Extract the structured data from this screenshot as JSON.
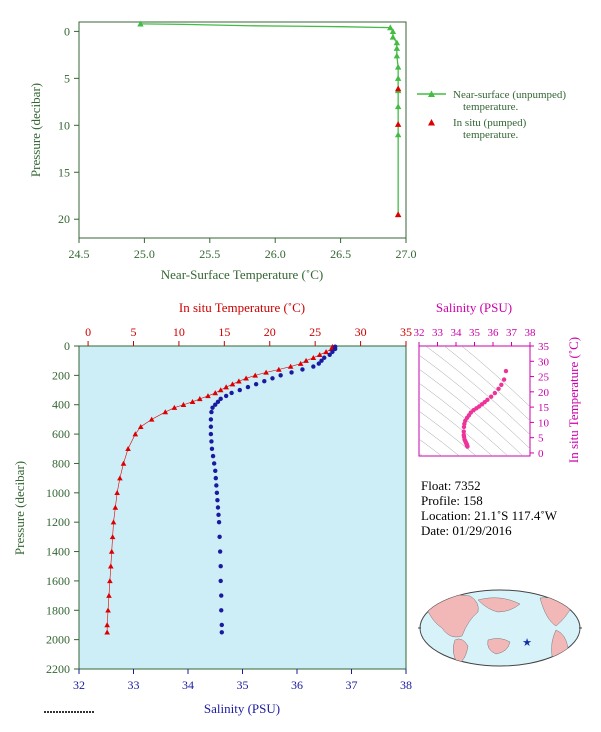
{
  "chart_data": [
    {
      "id": "near_surface",
      "type": "line",
      "xlabel": "Near-Surface Temperature (˚C)",
      "ylabel": "Pressure (decibar)",
      "xlim": [
        24.5,
        27.0
      ],
      "ylim": [
        22,
        -1
      ],
      "x_ticks": [
        "24.5",
        "25.0",
        "25.5",
        "26.0",
        "26.5",
        "27.0"
      ],
      "y_ticks": [
        "0",
        "5",
        "10",
        "15",
        "20"
      ],
      "legend": {
        "position": "right",
        "entries": [
          {
            "line1": "Near-surface (unpumped)",
            "line2": "temperature.",
            "color": "#44bb44",
            "marker": "triangle-line"
          },
          {
            "line1": "In situ (pumped)",
            "line2": "temperature.",
            "color": "#dd0000",
            "marker": "triangle"
          }
        ]
      },
      "series": [
        {
          "name": "Near-surface (unpumped) temperature.",
          "color": "#44bb44",
          "x": [
            24.97,
            25.3,
            25.8,
            26.2,
            26.5,
            26.88,
            26.9,
            26.9,
            26.93,
            26.93,
            26.93,
            26.94,
            26.94,
            26.94,
            26.94,
            26.94,
            26.94
          ],
          "y": [
            -0.8,
            -0.75,
            -0.6,
            -0.55,
            -0.5,
            -0.4,
            0.0,
            0.6,
            1.2,
            1.8,
            2.6,
            3.8,
            5.0,
            6.3,
            8.0,
            11.0,
            19.5
          ]
        },
        {
          "name": "In situ (pumped) temperature.",
          "color": "#dd0000",
          "x": [
            26.94,
            26.94,
            26.94
          ],
          "y": [
            6.1,
            9.9,
            19.5
          ]
        }
      ]
    },
    {
      "id": "profile",
      "type": "scatter",
      "top_xlabel": "In situ Temperature (˚C)",
      "bottom_xlabel": "Salinity (PSU)",
      "ylabel": "Pressure (decibar)",
      "temp_xlim": [
        -1,
        35
      ],
      "sal_xlim": [
        32,
        38
      ],
      "ylim": [
        0,
        2200
      ],
      "temp_ticks": [
        "0",
        "5",
        "10",
        "15",
        "20",
        "25",
        "30",
        "35"
      ],
      "sal_ticks": [
        "32",
        "33",
        "34",
        "35",
        "36",
        "37",
        "38"
      ],
      "y_ticks": [
        "0",
        "200",
        "400",
        "600",
        "800",
        "1000",
        "1200",
        "1400",
        "1600",
        "1800",
        "2000",
        "2200"
      ],
      "series": [
        {
          "name": "In situ Temperature",
          "color": "#dd0000",
          "marker": "triangle",
          "pressure": [
            5,
            20,
            40,
            60,
            80,
            100,
            120,
            140,
            160,
            180,
            200,
            220,
            240,
            260,
            280,
            300,
            320,
            340,
            360,
            380,
            400,
            420,
            450,
            500,
            550,
            600,
            700,
            800,
            900,
            1000,
            1100,
            1200,
            1300,
            1400,
            1500,
            1600,
            1700,
            1800,
            1900,
            1950
          ],
          "values": [
            26.9,
            26.8,
            26.2,
            25.5,
            24.8,
            24.0,
            23.4,
            22.3,
            21.0,
            19.6,
            18.4,
            17.4,
            16.6,
            15.9,
            15.2,
            14.6,
            14.0,
            13.2,
            12.3,
            11.5,
            10.5,
            9.5,
            8.5,
            7.0,
            5.8,
            5.2,
            4.4,
            3.9,
            3.5,
            3.2,
            3.0,
            2.8,
            2.7,
            2.6,
            2.5,
            2.4,
            2.3,
            2.2,
            2.1,
            2.1
          ]
        },
        {
          "name": "Salinity",
          "color": "#1a1aa0",
          "marker": "circle",
          "pressure": [
            5,
            20,
            40,
            60,
            80,
            100,
            120,
            140,
            160,
            180,
            200,
            220,
            240,
            260,
            280,
            300,
            320,
            340,
            360,
            380,
            400,
            420,
            450,
            500,
            550,
            600,
            650,
            700,
            750,
            800,
            850,
            900,
            950,
            1000,
            1050,
            1100,
            1150,
            1200,
            1300,
            1400,
            1500,
            1600,
            1700,
            1800,
            1900,
            1950
          ],
          "values": [
            36.7,
            36.7,
            36.65,
            36.6,
            36.5,
            36.45,
            36.4,
            36.3,
            36.1,
            35.9,
            35.7,
            35.55,
            35.4,
            35.25,
            35.1,
            34.95,
            34.8,
            34.7,
            34.6,
            34.55,
            34.5,
            34.45,
            34.43,
            34.42,
            34.42,
            34.42,
            34.43,
            34.44,
            34.46,
            34.48,
            34.5,
            34.51,
            34.52,
            34.53,
            34.54,
            34.55,
            34.56,
            34.57,
            34.58,
            34.59,
            34.6,
            34.6,
            34.61,
            34.61,
            34.62,
            34.62
          ]
        }
      ]
    },
    {
      "id": "ts_diagram",
      "type": "scatter",
      "top_xlabel": "Salinity (PSU)",
      "right_ylabel": "In situ Temperature (˚C)",
      "xlim": [
        32,
        38
      ],
      "ylim": [
        -1,
        35
      ],
      "x_ticks": [
        "32",
        "33",
        "34",
        "35",
        "36",
        "37",
        "38"
      ],
      "y_ticks": [
        "0",
        "5",
        "10",
        "15",
        "20",
        "25",
        "30",
        "35"
      ],
      "color": "#ee3399",
      "salinity": [
        34.62,
        34.61,
        34.6,
        34.59,
        34.58,
        34.57,
        34.55,
        34.53,
        34.5,
        34.46,
        34.44,
        34.42,
        34.42,
        34.43,
        34.45,
        34.5,
        34.6,
        34.7,
        34.8,
        34.95,
        35.1,
        35.25,
        35.4,
        35.55,
        35.7,
        35.9,
        36.1,
        36.3,
        36.45,
        36.6,
        36.7
      ],
      "temperature": [
        2.1,
        2.2,
        2.4,
        2.6,
        2.8,
        3.0,
        3.2,
        3.5,
        3.9,
        4.4,
        5.2,
        5.8,
        7.0,
        8.5,
        9.5,
        10.5,
        11.5,
        12.3,
        13.2,
        14.0,
        14.6,
        15.2,
        15.9,
        16.6,
        17.4,
        18.4,
        19.6,
        21.0,
        22.3,
        24.0,
        26.8
      ]
    }
  ],
  "info": {
    "float": "Float:  7352",
    "profile": "Profile:  158",
    "location": "Location:  21.1˚S  117.4˚W",
    "date": "Date:  01/29/2016"
  },
  "map": {
    "marker": "star",
    "marker_color": "#1133aa",
    "land_color": "#f2b8b8",
    "ocean_color": "#d8f2fa"
  },
  "colors": {
    "green": "#336633",
    "red": "#cc0000",
    "blue": "#1a1aa0",
    "magenta": "#cc00aa",
    "panel_bg": "#cdeef7"
  }
}
